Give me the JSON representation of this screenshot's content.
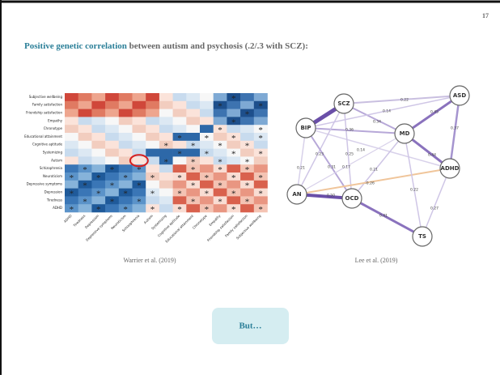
{
  "slide": {
    "number": "17",
    "title_highlight": "Positive genetic correlation",
    "title_rest": " between autism and psychosis (.2/.3 with SCZ):",
    "left_caption": "Warrier et al. (2019)",
    "right_caption": "Lee et al. (2019)",
    "button": "But…"
  },
  "heatmap": {
    "rows": [
      "Subjective wellbeing",
      "Family satisfaction",
      "Friendship satisfaction",
      "Empathy",
      "Chronotype",
      "Educational attainment",
      "Cognitive aptitude",
      "Systemizing",
      "Autism",
      "Schizophrenia",
      "Neuroticism",
      "Depressive symptoms",
      "Depression",
      "Tiredness",
      "ADHD"
    ],
    "columns": [
      "ADHD",
      "Tiredness",
      "Depression",
      "Depressive symptoms",
      "Neuroticism",
      "Schizophrenia",
      "Autism",
      "Systemizing",
      "Cognitive aptitude",
      "Educational attainment",
      "Chronotype",
      "Empathy",
      "Friendship satisfaction",
      "Family satisfaction",
      "Subjective wellbeing"
    ],
    "asterisk": "*"
  },
  "network": {
    "nodes": [
      "SCZ",
      "ASD",
      "BIP",
      "MD",
      "ADHD",
      "AN",
      "OCD",
      "TS"
    ],
    "edge_labels": [
      "0.22",
      "0.14",
      "0.34",
      "0.45",
      "0.37",
      "0.36",
      "0.14",
      "0.44",
      "0.23",
      "0.25",
      "0.21",
      "0.31",
      "0.17",
      "0.21",
      "-0.26",
      "0.50",
      "0.22",
      "0.41",
      "0.27"
    ]
  }
}
